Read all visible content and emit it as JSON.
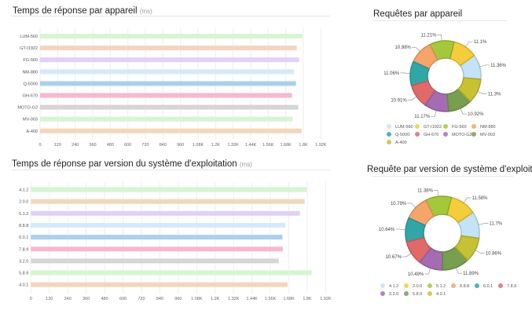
{
  "chart_data": [
    {
      "type": "bar",
      "orientation": "horizontal",
      "title": "Temps de réponse par appareil",
      "unit": "(ms)",
      "categories": [
        "LUM-560",
        "GT-I1922",
        "FG-560",
        "NM-880",
        "Q-5000",
        "GH-670",
        "MOTO-G2",
        "MV-003",
        "A-400"
      ],
      "values": [
        1795,
        1755,
        1771,
        1736,
        1750,
        1723,
        1766,
        1727,
        1788
      ],
      "colors": [
        "#d6f5d0",
        "#f3d6be",
        "#e2d0f7",
        "#d6e9fb",
        "#a9d0ee",
        "#f7b8cf",
        "#d5d5d5",
        "#d6f5d0",
        "#f3d6be"
      ],
      "xlim": [
        0,
        1920
      ],
      "xticks": [
        "0",
        "120",
        "240",
        "360",
        "480",
        "600",
        "720",
        "840",
        "960",
        "1.08K",
        "1.2K",
        "1.32K",
        "1.44K",
        "1.56K",
        "1.68K",
        "1.8K",
        "1.92K"
      ],
      "grid": true
    },
    {
      "type": "pie",
      "donut": true,
      "title": "Requêtes par appareil",
      "labels": [
        "LUM-560",
        "GT-I1922",
        "FG-560",
        "NM-880",
        "Q-5000",
        "GH-670",
        "MOTO-G2",
        "MV-003",
        "A-400"
      ],
      "values": [
        11.36,
        11.1,
        11.21,
        10.98,
        11.06,
        10.91,
        11.17,
        10.92,
        11.3
      ],
      "value_labels": [
        "11.36%",
        "11.1%",
        "11.21%",
        "10.98%",
        "11.06%",
        "10.91%",
        "11.17%",
        "10.92%",
        "11.3%"
      ],
      "colors": [
        "#c4e3f7",
        "#f5cd3a",
        "#a3c93a",
        "#f5a46a",
        "#32a6a6",
        "#e06a6a",
        "#a56cb3",
        "#789e50",
        "#c7c234"
      ],
      "legend": "bottom"
    },
    {
      "type": "bar",
      "orientation": "horizontal",
      "title": "Temps de réponse par version du système d'exploitation",
      "unit": "(ms)",
      "categories": [
        "4.1.2",
        "2.0.0",
        "5.1.2",
        "8.8.8",
        "6.0.1",
        "7.8.9",
        "3.2.0",
        "5.8.9",
        "4.0.1"
      ],
      "values": [
        1800,
        1783,
        1752,
        1658,
        1638,
        1641,
        1614,
        1829,
        1672
      ],
      "colors": [
        "#d6f5d0",
        "#f3d6be",
        "#e2d0f7",
        "#d6e9fb",
        "#a9d0ee",
        "#f7b8cf",
        "#d5d5d5",
        "#d6f5d0",
        "#f3d6be"
      ],
      "xlim": [
        0,
        1920
      ],
      "xticks": [
        "0",
        "120",
        "240",
        "360",
        "480",
        "600",
        "720",
        "840",
        "960",
        "1.08K",
        "1.2K",
        "1.32K",
        "1.44K",
        "1.56K",
        "1.68K",
        "1.8K",
        "1.92K"
      ],
      "grid": true
    },
    {
      "type": "pie",
      "donut": true,
      "title": "Requête par version de système d'exploitation",
      "labels": [
        "4.1.2",
        "2.0.0",
        "5.1.2",
        "8.8.8",
        "6.0.1",
        "7.8.9",
        "3.2.0",
        "5.8.9",
        "4.0.1"
      ],
      "values": [
        11.7,
        11.58,
        11.38,
        10.79,
        10.64,
        10.67,
        10.49,
        11.89,
        10.86
      ],
      "value_labels": [
        "11.7%",
        "11.58%",
        "11.38%",
        "10.79%",
        "10.64%",
        "10.67%",
        "10.49%",
        "11.89%",
        "10.86%"
      ],
      "colors": [
        "#c4e3f7",
        "#f5cd3a",
        "#a3c93a",
        "#f5a46a",
        "#32a6a6",
        "#e06a6a",
        "#a56cb3",
        "#789e50",
        "#c7c234"
      ],
      "legend": "bottom"
    }
  ]
}
